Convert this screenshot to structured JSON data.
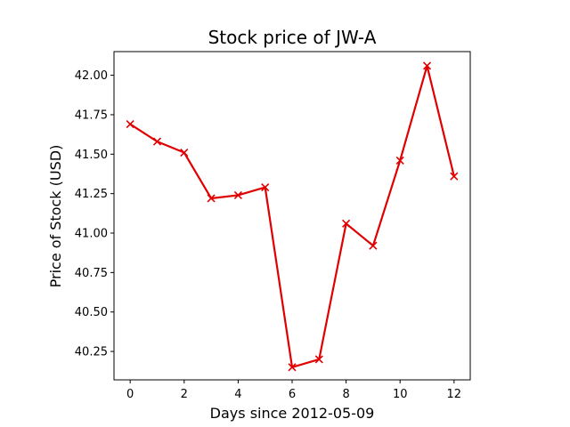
{
  "chart_data": {
    "type": "line",
    "title": "Stock price of JW-A",
    "xlabel": "Days since 2012-05-09",
    "ylabel": "Price of Stock (USD)",
    "x": [
      0,
      1,
      2,
      3,
      4,
      5,
      6,
      7,
      8,
      9,
      10,
      11,
      12
    ],
    "xlim": [
      -0.6,
      12.6
    ],
    "ylim": [
      40.07,
      42.15
    ],
    "xticks": [
      0,
      2,
      4,
      6,
      8,
      10,
      12
    ],
    "yticks": [
      40.25,
      40.5,
      40.75,
      41.0,
      41.25,
      41.5,
      41.75,
      42.0
    ],
    "xtick_labels": [
      "0",
      "2",
      "4",
      "6",
      "8",
      "10",
      "12"
    ],
    "ytick_labels": [
      "40.25",
      "40.50",
      "40.75",
      "41.00",
      "41.25",
      "41.50",
      "41.75",
      "42.00"
    ],
    "grid": false,
    "series": [
      {
        "values": [
          41.69,
          41.58,
          41.51,
          41.22,
          41.24,
          41.29,
          40.15,
          40.2,
          41.06,
          40.92,
          41.46,
          42.06,
          41.36
        ],
        "color": "#e00000",
        "marker": "x"
      }
    ]
  }
}
